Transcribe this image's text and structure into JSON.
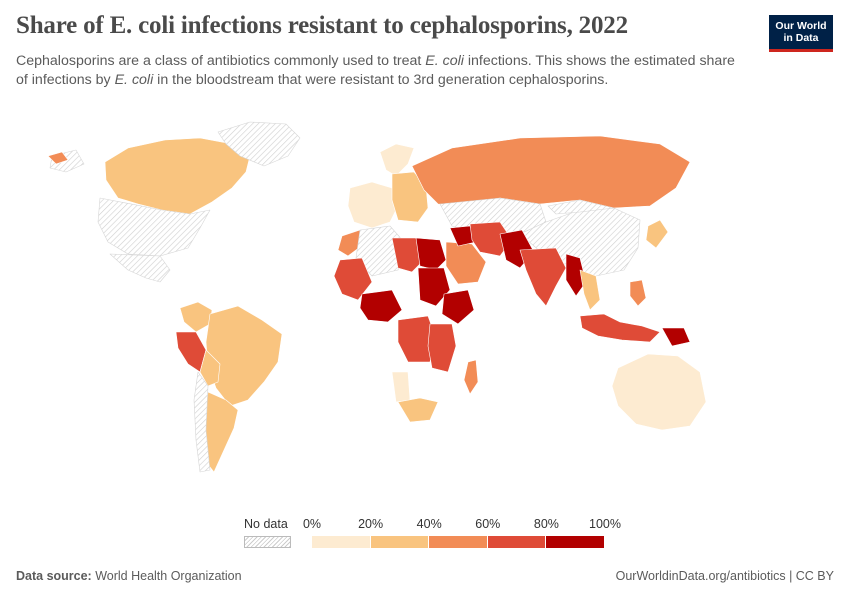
{
  "header": {
    "title": "Share of E. coli infections resistant to cephalosporins, 2022",
    "subtitle_part1": "Cephalosporins are a class of antibiotics commonly used to treat ",
    "subtitle_em1": "E. coli",
    "subtitle_part2": " infections. This shows the estimated share of infections by ",
    "subtitle_em2": "E. coli",
    "subtitle_part3": " in the bloodstream that were resistant to 3rd generation cephalosporins."
  },
  "logo": {
    "line1": "Our World",
    "line2": "in Data"
  },
  "legend": {
    "no_data_label": "No data",
    "ticks": [
      "0%",
      "20%",
      "40%",
      "60%",
      "80%",
      "100%"
    ],
    "colors": [
      "#fdebd1",
      "#f9c47f",
      "#f28c56",
      "#df4b37",
      "#b20000"
    ]
  },
  "map_data": {
    "metric": "Share of E. coli bloodstream infections resistant to 3rd generation cephalosporins (%)",
    "year": "2022",
    "bins": [
      0,
      20,
      40,
      60,
      80,
      100
    ],
    "regions": [
      {
        "name": "Canada",
        "bin": 1
      },
      {
        "name": "Greenland",
        "bin": -1
      },
      {
        "name": "United States",
        "bin": -1
      },
      {
        "name": "Mexico",
        "bin": -1
      },
      {
        "name": "Colombia",
        "bin": 1
      },
      {
        "name": "Peru",
        "bin": 3
      },
      {
        "name": "Brazil",
        "bin": 1
      },
      {
        "name": "Bolivia",
        "bin": 1
      },
      {
        "name": "Argentina",
        "bin": 1
      },
      {
        "name": "Chile",
        "bin": -1
      },
      {
        "name": "Iceland",
        "bin": 2
      },
      {
        "name": "Norway",
        "bin": 0
      },
      {
        "name": "Western Europe",
        "bin": 0
      },
      {
        "name": "Eastern Europe",
        "bin": 1
      },
      {
        "name": "Russia",
        "bin": 2
      },
      {
        "name": "Kazakhstan",
        "bin": -1
      },
      {
        "name": "China",
        "bin": -1
      },
      {
        "name": "Mongolia",
        "bin": -1
      },
      {
        "name": "Japan",
        "bin": 1
      },
      {
        "name": "Morocco",
        "bin": 2
      },
      {
        "name": "Algeria",
        "bin": -1
      },
      {
        "name": "Libya",
        "bin": 3
      },
      {
        "name": "Egypt",
        "bin": 4
      },
      {
        "name": "Sudan",
        "bin": 4
      },
      {
        "name": "Ethiopia",
        "bin": 4
      },
      {
        "name": "Mali",
        "bin": 3
      },
      {
        "name": "Nigeria",
        "bin": 4
      },
      {
        "name": "DR Congo",
        "bin": 3
      },
      {
        "name": "Tanzania",
        "bin": 3
      },
      {
        "name": "Namibia",
        "bin": 0
      },
      {
        "name": "South Africa",
        "bin": 1
      },
      {
        "name": "Madagascar",
        "bin": 2
      },
      {
        "name": "Saudi Arabia",
        "bin": 2
      },
      {
        "name": "Iraq",
        "bin": 4
      },
      {
        "name": "Iran",
        "bin": 3
      },
      {
        "name": "Pakistan",
        "bin": 4
      },
      {
        "name": "India",
        "bin": 3
      },
      {
        "name": "Myanmar",
        "bin": 4
      },
      {
        "name": "Thailand",
        "bin": 1
      },
      {
        "name": "Indonesia",
        "bin": 3
      },
      {
        "name": "Philippines",
        "bin": 2
      },
      {
        "name": "Papua New Guinea",
        "bin": 4
      },
      {
        "name": "Australia",
        "bin": 0
      }
    ]
  },
  "footer": {
    "source_label": "Data source:",
    "source_value": " World Health Organization",
    "url": "OurWorldinData.org/antibiotics | CC BY"
  }
}
